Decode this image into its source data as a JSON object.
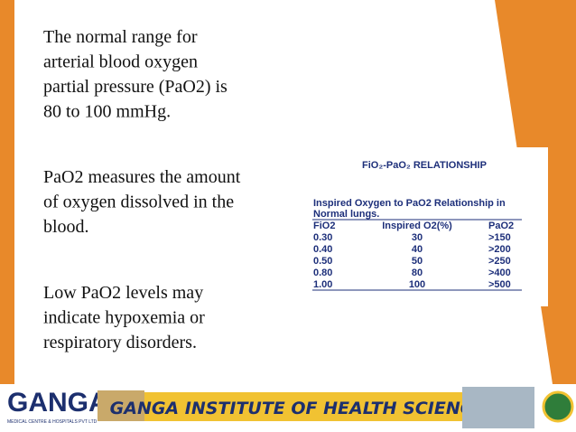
{
  "paragraphs": [
    {
      "lines": [
        "The normal range for",
        "arterial blood oxygen",
        "partial pressure (PaO2) is",
        "80 to 100 mmHg."
      ]
    },
    {
      "lines": [
        "PaO2 measures the amount",
        "of oxygen dissolved in the",
        "blood."
      ]
    },
    {
      "lines": [
        "Low PaO2 levels may",
        "indicate hypoxemia or",
        "respiratory disorders."
      ]
    }
  ],
  "table": {
    "title": "FiO₂-PaO₂ RELATIONSHIP",
    "subtitle": [
      "Inspired Oxygen to PaO2 Relationship in",
      "Normal lungs."
    ],
    "header": [
      "FiO2",
      "Inspired O2(%)",
      "PaO2"
    ],
    "rows": [
      [
        "0.30",
        "30",
        ">150"
      ],
      [
        "0.40",
        "40",
        ">200"
      ],
      [
        "0.50",
        "50",
        ">250"
      ],
      [
        "0.80",
        "80",
        ">400"
      ],
      [
        "1.00",
        "100",
        ">500"
      ]
    ]
  },
  "banner": {
    "logo": "GANGA",
    "logo_tagline": "MEDICAL CENTRE & HOSPITALS PVT LTD",
    "title": "GANGA INSTITUTE OF HEALTH SCIENCES"
  }
}
